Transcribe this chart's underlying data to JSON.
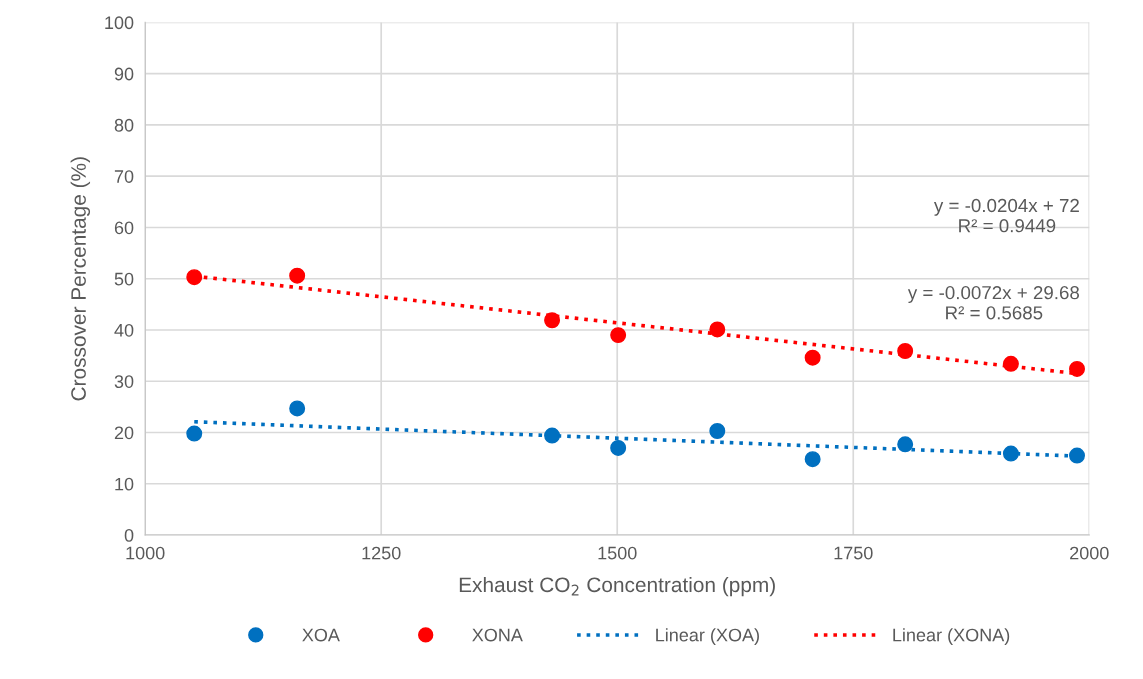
{
  "chart_data": {
    "type": "scatter",
    "xlabel": "Exhaust CO$_{2}$ Concentration (ppm)",
    "ylabel": "Crossover Percentage (%)",
    "xlim": [
      1000,
      2000
    ],
    "xticks": [
      1000,
      1250,
      1500,
      1750,
      2000
    ],
    "ylim": [
      0,
      100
    ],
    "yticks": [
      0,
      10,
      20,
      30,
      40,
      50,
      60,
      70,
      80,
      90,
      100
    ],
    "grid": true,
    "legend": "bottom",
    "series": [
      {
        "name": "XOA",
        "marker": "circle",
        "color": "#0070c0",
        "x": [
          1052,
          1161,
          1431,
          1501,
          1606,
          1707,
          1805,
          1917,
          1987
        ],
        "values": [
          19.8,
          24.7,
          19.4,
          17.0,
          20.3,
          14.8,
          17.7,
          15.9,
          15.5
        ]
      },
      {
        "name": "XONA",
        "marker": "circle",
        "color": "#ff0000",
        "x": [
          1052,
          1161,
          1431,
          1501,
          1606,
          1707,
          1805,
          1917,
          1987
        ],
        "values": [
          50.3,
          50.6,
          41.9,
          39.0,
          40.1,
          34.6,
          35.9,
          33.4,
          32.4
        ]
      },
      {
        "name": "Linear (XOA)",
        "type": "line",
        "line_style": "dotted",
        "color": "#0070c0",
        "x": [
          1052,
          1987
        ],
        "values": [
          22.1,
          15.4
        ]
      },
      {
        "name": "Linear (XONA)",
        "type": "line",
        "line_style": "dotted",
        "color": "#ff0000",
        "x": [
          1052,
          1987
        ],
        "values": [
          50.5,
          31.5
        ]
      }
    ],
    "annotations": [
      "y = -0.0204x + 72\nR² = 0.9449",
      "y = -0.0072x + 29.68\nR² = 0.5685"
    ]
  }
}
